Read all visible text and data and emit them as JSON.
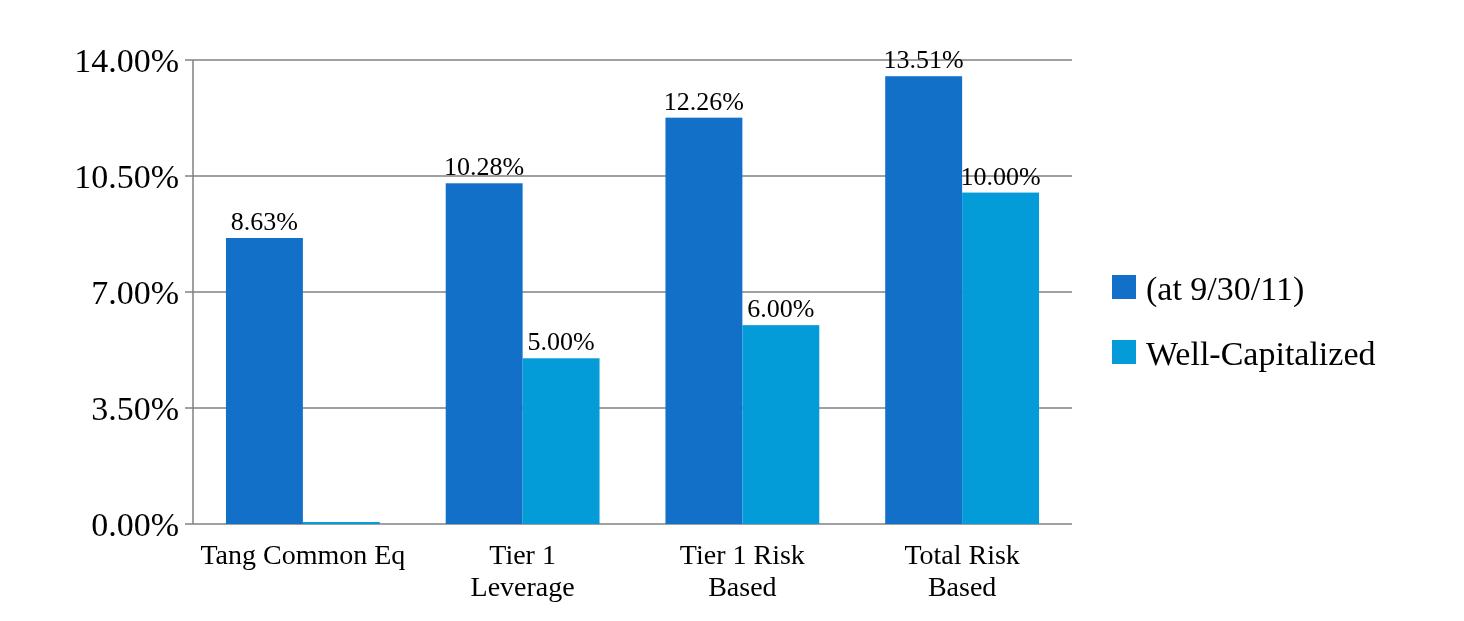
{
  "chart_data": {
    "type": "bar",
    "categories": [
      "Tang Common Eq",
      "Tier 1 Leverage",
      "Tier 1 Risk Based",
      "Total Risk Based"
    ],
    "series": [
      {
        "name": "(at 9/30/11)",
        "color": "#1270c8",
        "values": [
          8.63,
          10.28,
          12.26,
          13.51
        ],
        "value_labels": [
          "8.63%",
          "10.28%",
          "12.26%",
          "13.51%"
        ]
      },
      {
        "name": "Well-Capitalized",
        "color": "#049cd8",
        "values": [
          0,
          5,
          6,
          10
        ],
        "value_labels": [
          null,
          "5.00%",
          "6.00%",
          "10.00%"
        ]
      }
    ],
    "ylim": [
      0,
      14
    ],
    "yticks": [
      {
        "value": 0,
        "label": "0.00%"
      },
      {
        "value": 3.5,
        "label": "3.50%"
      },
      {
        "value": 7,
        "label": "7.00%"
      },
      {
        "value": 10.5,
        "label": "10.50%"
      },
      {
        "value": 14,
        "label": "14.00%"
      }
    ],
    "grid": "y",
    "legend": "right"
  }
}
